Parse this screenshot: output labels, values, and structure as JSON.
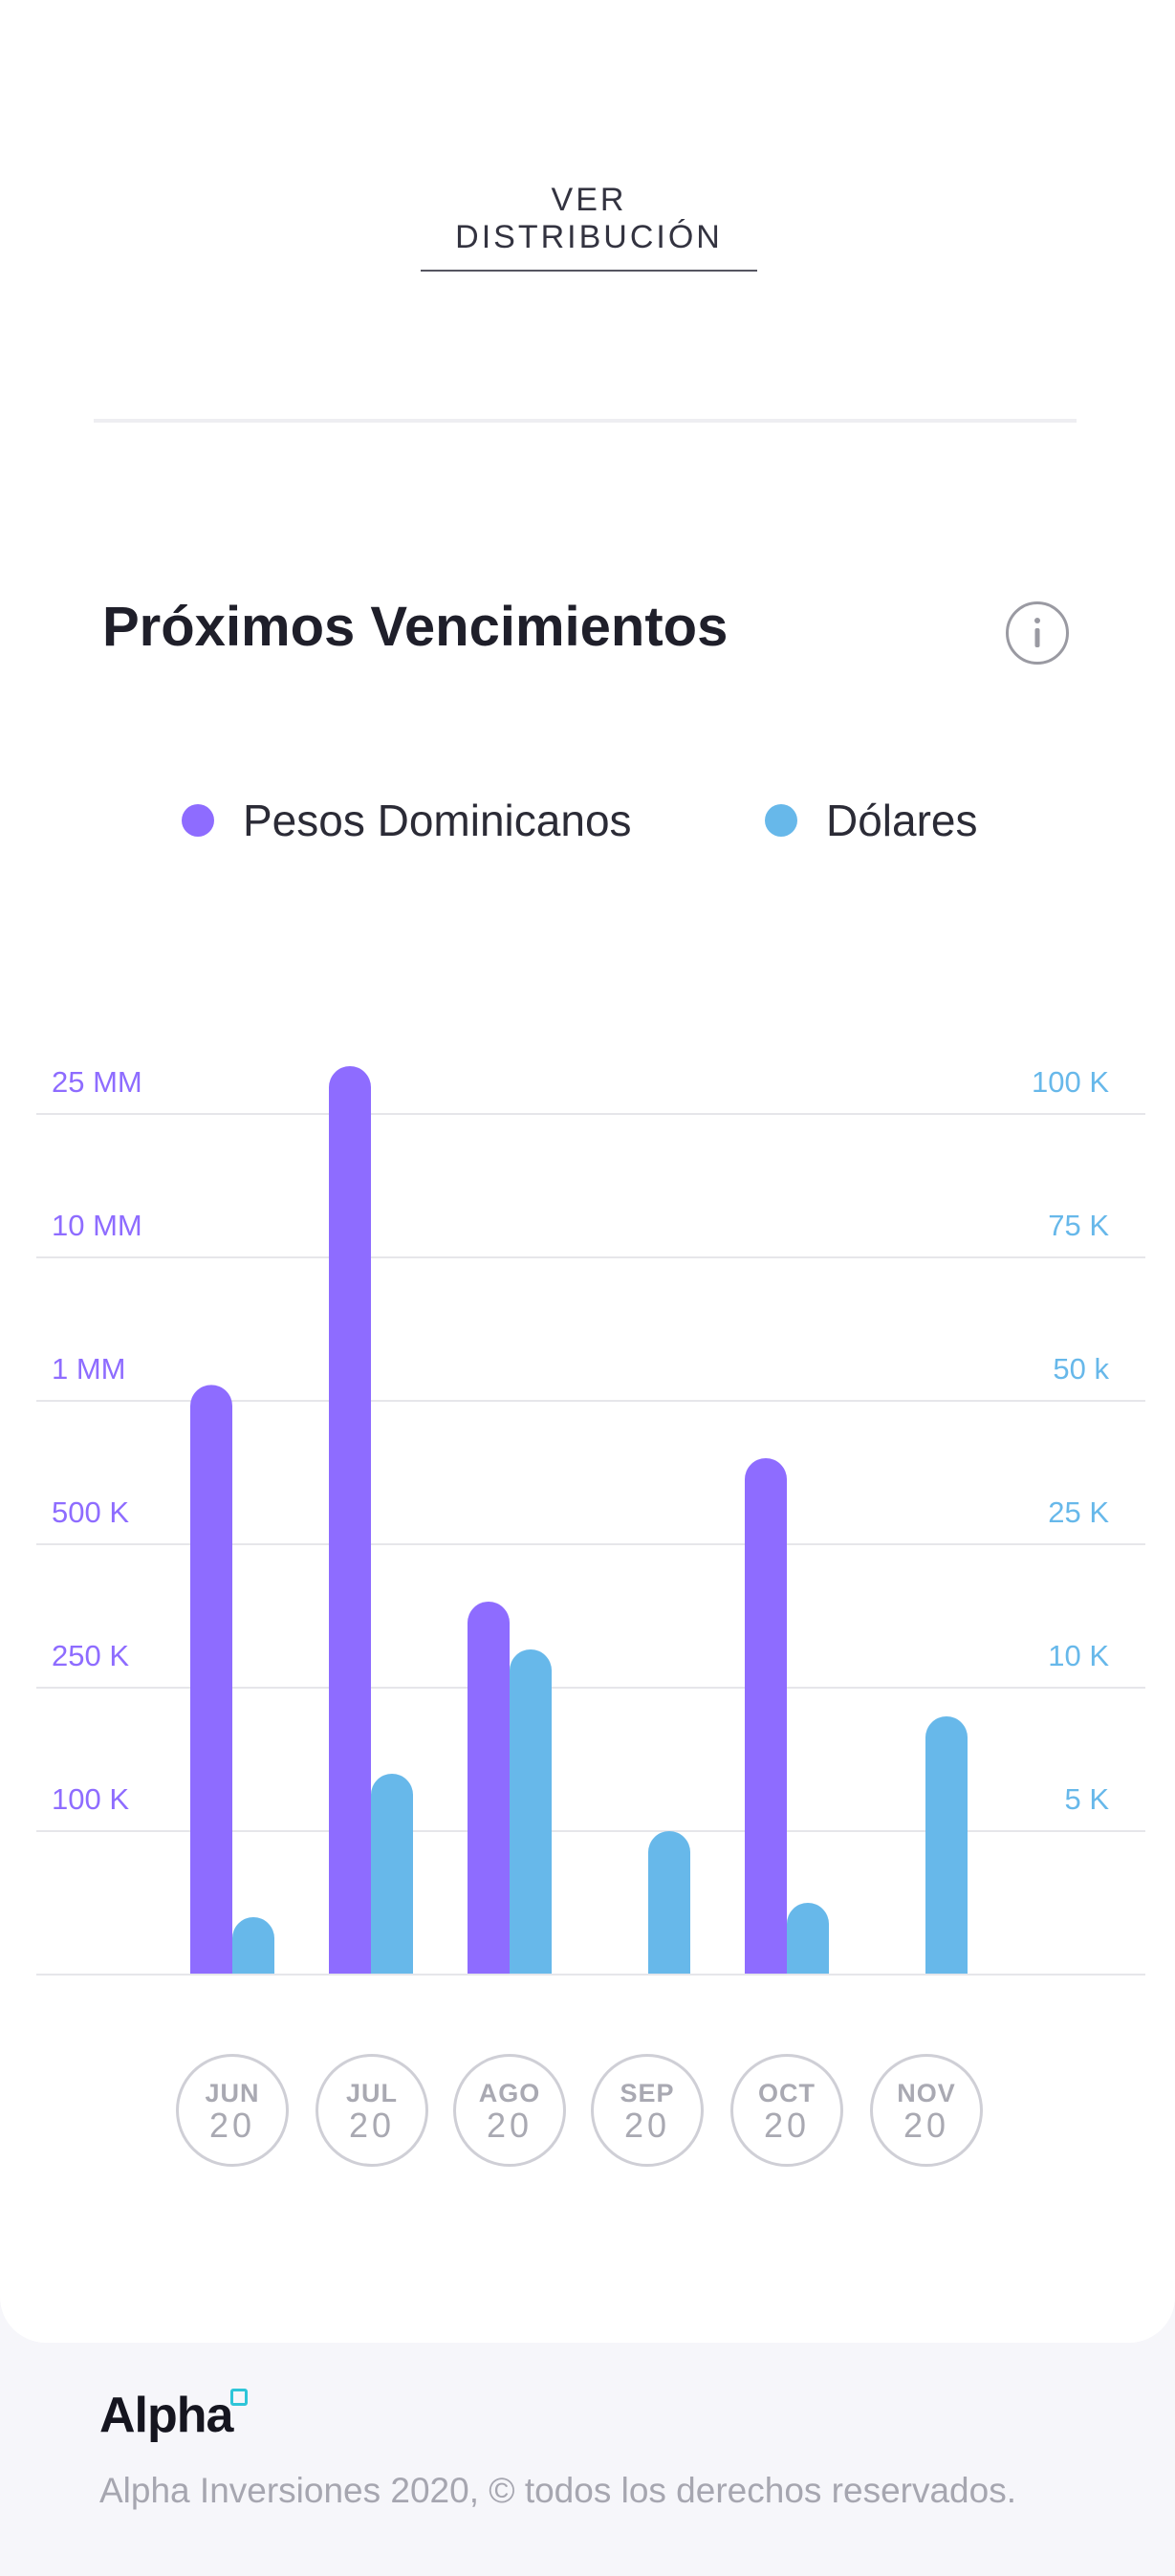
{
  "links": {
    "ver_distribucion": "VER DISTRIBUCIÓN"
  },
  "section": {
    "title": "Próximos Vencimientos",
    "info_icon": "info-icon"
  },
  "legend": {
    "pesos": "Pesos Dominicanos",
    "dolares": "Dólares"
  },
  "colors": {
    "pesos": "#8e6cff",
    "dolares": "#67b8ea",
    "grid": "#e6e6ea"
  },
  "chart_data": {
    "type": "bar",
    "categories": [
      "JUN 20",
      "JUL 20",
      "AGO 20",
      "SEP 20",
      "OCT 20",
      "NOV 20"
    ],
    "left_axis_ticks": [
      "100 K",
      "250 K",
      "500 K",
      "1 MM",
      "10 MM",
      "25 MM"
    ],
    "right_axis_ticks": [
      "5 K",
      "10 K",
      "25 K",
      "50 k",
      "75 K",
      "100 K"
    ],
    "series": [
      {
        "name": "Pesos Dominicanos",
        "axis": "left",
        "values": [
          2000000,
          30000000,
          400000,
          null,
          800000,
          null
        ]
      },
      {
        "name": "Dólares",
        "axis": "right",
        "values": [
          2000,
          7000,
          14000,
          5000,
          2500,
          9000
        ]
      }
    ],
    "grid": true,
    "legend_position": "top"
  },
  "months": [
    {
      "m": "JUN",
      "y": "20"
    },
    {
      "m": "JUL",
      "y": "20"
    },
    {
      "m": "AGO",
      "y": "20"
    },
    {
      "m": "SEP",
      "y": "20"
    },
    {
      "m": "OCT",
      "y": "20"
    },
    {
      "m": "NOV",
      "y": "20"
    }
  ],
  "footer": {
    "brand": "Alpha",
    "copyright": "Alpha Inversiones 2020, © todos los derechos reservados."
  }
}
